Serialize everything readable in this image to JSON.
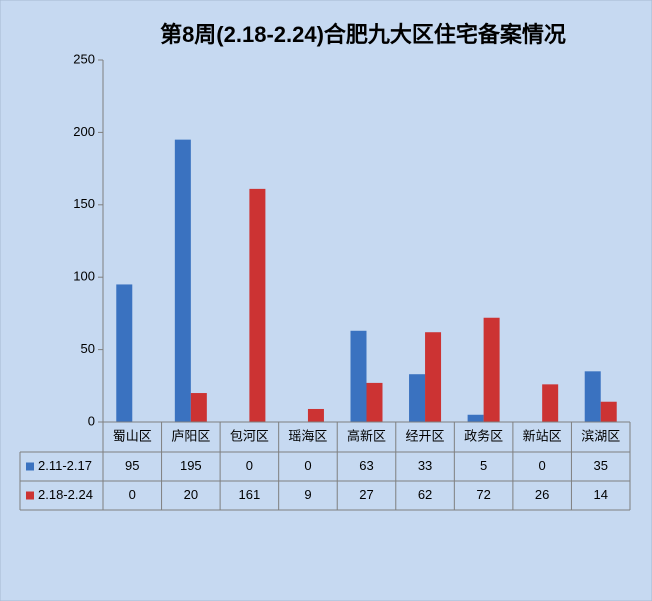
{
  "chart_data": {
    "type": "bar",
    "title": "第8周(2.18-2.24)合肥九大区住宅备案情况",
    "categories": [
      "蜀山区",
      "庐阳区",
      "包河区",
      "瑶海区",
      "高新区",
      "经开区",
      "政务区",
      "新站区",
      "滨湖区"
    ],
    "series": [
      {
        "name": "2.11-2.17",
        "color": "#3a72c0",
        "values": [
          95,
          195,
          0,
          0,
          63,
          33,
          5,
          0,
          35
        ]
      },
      {
        "name": "2.18-2.24",
        "color": "#cc3333",
        "values": [
          0,
          20,
          161,
          9,
          27,
          62,
          72,
          26,
          14
        ]
      }
    ],
    "ylim": [
      0,
      250
    ],
    "yticks": [
      0,
      50,
      100,
      150,
      200,
      250
    ],
    "grid": false,
    "data_table": true
  }
}
